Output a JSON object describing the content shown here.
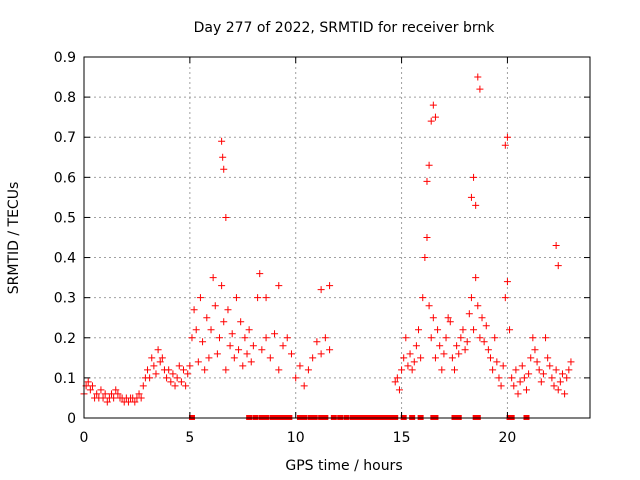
{
  "chart_data": {
    "type": "scatter",
    "title": "Day 277 of 2022, SRMTID for receiver brnk",
    "xlabel": "GPS time / hours",
    "ylabel": "SRMTID / TECUs",
    "xlim": [
      0,
      23.9
    ],
    "ylim": [
      0,
      0.9
    ],
    "x_ticks": [
      0,
      5,
      10,
      15,
      20
    ],
    "y_ticks": [
      0,
      0.1,
      0.2,
      0.3,
      0.4,
      0.5,
      0.6,
      0.7,
      0.8,
      0.9
    ],
    "grid": true,
    "marker_color": "#ff0000",
    "series": [
      {
        "name": "SRMTID",
        "marker": "plus",
        "x": [
          0.0,
          0.1,
          0.2,
          0.3,
          0.4,
          0.5,
          0.6,
          0.7,
          0.8,
          0.9,
          1.0,
          1.1,
          1.2,
          1.3,
          1.4,
          1.5,
          1.6,
          1.7,
          1.8,
          1.9,
          2.0,
          2.1,
          2.2,
          2.3,
          2.4,
          2.5,
          2.6,
          2.7,
          2.8,
          2.9,
          3.0,
          3.1,
          3.2,
          3.3,
          3.4,
          3.5,
          3.6,
          3.7,
          3.8,
          3.9,
          4.0,
          4.1,
          4.2,
          4.3,
          4.4,
          4.5,
          4.6,
          4.7,
          4.8,
          4.9,
          5.0,
          5.1,
          5.2,
          5.3,
          5.4,
          5.5,
          5.6,
          5.7,
          5.8,
          5.9,
          6.0,
          6.1,
          6.2,
          6.3,
          6.4,
          6.5,
          6.6,
          6.7,
          6.8,
          6.9,
          7.0,
          7.1,
          7.2,
          7.3,
          7.4,
          7.5,
          7.6,
          7.7,
          7.8,
          7.9,
          8.0,
          8.2,
          8.4,
          8.6,
          8.8,
          9.0,
          9.2,
          9.4,
          9.6,
          9.8,
          10.0,
          10.2,
          10.4,
          10.6,
          10.8,
          11.0,
          11.2,
          11.4,
          11.6,
          14.7,
          14.8,
          14.9,
          15.0,
          15.1,
          15.2,
          15.3,
          15.4,
          15.5,
          15.6,
          15.7,
          15.8,
          15.9,
          16.0,
          16.1,
          16.2,
          16.3,
          16.4,
          16.5,
          16.6,
          16.7,
          16.8,
          16.9,
          17.0,
          17.1,
          17.2,
          17.3,
          17.4,
          17.5,
          17.6,
          17.7,
          17.8,
          17.9,
          18.0,
          18.1,
          18.2,
          18.3,
          18.4,
          18.5,
          18.6,
          18.7,
          18.8,
          18.9,
          19.0,
          19.1,
          19.2,
          19.3,
          19.4,
          19.5,
          19.6,
          19.7,
          19.8,
          19.9,
          20.0,
          20.1,
          20.2,
          20.3,
          20.4,
          20.5,
          20.6,
          20.7,
          20.8,
          20.9,
          21.0,
          21.1,
          21.2,
          21.3,
          21.4,
          21.5,
          21.6,
          21.7,
          21.8,
          21.9,
          22.0,
          22.1,
          22.2,
          22.3,
          22.4,
          22.5,
          22.6,
          22.7,
          22.8,
          22.9,
          23.0,
          6.5,
          6.55,
          6.6,
          6.7,
          8.3,
          8.6,
          9.2,
          11.2,
          11.6,
          16.2,
          16.3,
          16.4,
          16.5,
          16.6,
          18.3,
          18.4,
          18.5,
          18.6,
          18.7,
          19.9,
          20.0,
          22.3,
          22.4
        ],
        "y": [
          0.06,
          0.08,
          0.09,
          0.07,
          0.08,
          0.05,
          0.06,
          0.05,
          0.07,
          0.05,
          0.06,
          0.04,
          0.05,
          0.06,
          0.05,
          0.07,
          0.06,
          0.05,
          0.05,
          0.04,
          0.05,
          0.04,
          0.05,
          0.05,
          0.04,
          0.05,
          0.06,
          0.05,
          0.08,
          0.1,
          0.12,
          0.1,
          0.15,
          0.13,
          0.11,
          0.17,
          0.14,
          0.15,
          0.12,
          0.1,
          0.12,
          0.09,
          0.11,
          0.08,
          0.1,
          0.13,
          0.09,
          0.12,
          0.08,
          0.11,
          0.13,
          0.2,
          0.27,
          0.22,
          0.14,
          0.3,
          0.19,
          0.12,
          0.25,
          0.15,
          0.22,
          0.35,
          0.28,
          0.16,
          0.2,
          0.33,
          0.24,
          0.12,
          0.27,
          0.18,
          0.21,
          0.15,
          0.3,
          0.17,
          0.24,
          0.13,
          0.2,
          0.16,
          0.22,
          0.14,
          0.18,
          0.3,
          0.17,
          0.2,
          0.15,
          0.21,
          0.12,
          0.18,
          0.2,
          0.16,
          0.1,
          0.13,
          0.08,
          0.12,
          0.15,
          0.19,
          0.16,
          0.2,
          0.17,
          0.09,
          0.1,
          0.07,
          0.12,
          0.15,
          0.2,
          0.13,
          0.16,
          0.12,
          0.14,
          0.18,
          0.22,
          0.15,
          0.3,
          0.4,
          0.45,
          0.28,
          0.2,
          0.25,
          0.15,
          0.22,
          0.18,
          0.12,
          0.16,
          0.2,
          0.25,
          0.24,
          0.15,
          0.12,
          0.18,
          0.16,
          0.2,
          0.22,
          0.17,
          0.19,
          0.26,
          0.3,
          0.22,
          0.35,
          0.28,
          0.2,
          0.25,
          0.19,
          0.23,
          0.17,
          0.15,
          0.12,
          0.2,
          0.14,
          0.1,
          0.08,
          0.13,
          0.3,
          0.34,
          0.22,
          0.1,
          0.08,
          0.12,
          0.06,
          0.09,
          0.13,
          0.1,
          0.07,
          0.11,
          0.15,
          0.2,
          0.17,
          0.14,
          0.12,
          0.09,
          0.11,
          0.2,
          0.15,
          0.13,
          0.1,
          0.08,
          0.12,
          0.07,
          0.09,
          0.11,
          0.06,
          0.1,
          0.12,
          0.14,
          0.69,
          0.65,
          0.62,
          0.5,
          0.36,
          0.3,
          0.33,
          0.32,
          0.33,
          0.59,
          0.63,
          0.74,
          0.78,
          0.75,
          0.55,
          0.6,
          0.53,
          0.85,
          0.82,
          0.68,
          0.7,
          0.43,
          0.38
        ]
      }
    ],
    "zero_markers_hours": [
      5.1,
      7.8,
      8.1,
      8.4,
      8.6,
      8.9,
      9.1,
      9.3,
      9.5,
      9.7,
      10.2,
      10.4,
      10.7,
      10.9,
      11.2,
      11.4,
      11.8,
      12.1,
      12.4,
      12.7,
      12.9,
      13.1,
      13.3,
      13.5,
      13.7,
      13.9,
      14.1,
      14.3,
      14.5,
      14.7,
      15.1,
      15.5,
      15.9,
      16.5,
      16.6,
      17.5,
      17.7,
      18.5,
      18.6,
      20.1,
      20.2,
      20.9
    ]
  }
}
